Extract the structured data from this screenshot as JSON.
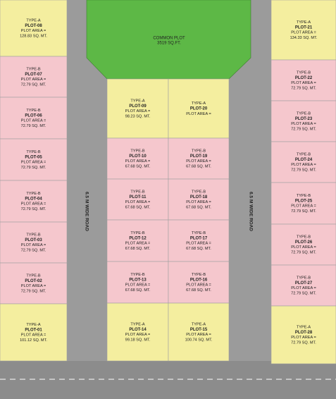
{
  "common_plot": {
    "label": "COMMON PLOT",
    "area": "3519 SQ.FT."
  },
  "road_labels": [
    "6.5 M WIDE ROAD",
    "6.5 M WIDE ROAD"
  ],
  "plots": [
    {
      "type": "TYPE-A",
      "label": "PLOT-08",
      "area_label": "PLOT AREA =",
      "area": "128.83 SQ. MT."
    },
    {
      "type": "TYPE-B",
      "label": "PLOT-07",
      "area_label": "PLOT AREA =",
      "area": "72.79 SQ. MT."
    },
    {
      "type": "TYPE-B",
      "label": "PLOT-06",
      "area_label": "PLOT AREA =",
      "area": "72.79 SQ. MT."
    },
    {
      "type": "TYPE-B",
      "label": "PLOT-05",
      "area_label": "PLOT AREA =",
      "area": "72.79 SQ. MT."
    },
    {
      "type": "TYPE-B",
      "label": "PLOT-04",
      "area_label": "PLOT AREA =",
      "area": "72.79 SQ. MT."
    },
    {
      "type": "TYPE-B",
      "label": "PLOT-03",
      "area_label": "PLOT AREA =",
      "area": "72.79 SQ. MT."
    },
    {
      "type": "TYPE-B",
      "label": "PLOT-02",
      "area_label": "PLOT AREA =",
      "area": "72.79 SQ. MT."
    },
    {
      "type": "TYPE-A",
      "label": "PLOT-01",
      "area_label": "PLOT AREA =",
      "area": "101.12 SQ. MT."
    },
    {
      "type": "TYPE-A",
      "label": "PLOT-09",
      "area_label": "PLOT AREA =",
      "area": "98.23 SQ. MT."
    },
    {
      "type": "TYPE-B",
      "label": "PLOT-10",
      "area_label": "PLOT AREA =",
      "area": "67.68 SQ. MT."
    },
    {
      "type": "TYPE-B",
      "label": "PLOT-11",
      "area_label": "PLOT AREA =",
      "area": "67.68 SQ. MT."
    },
    {
      "type": "TYPE-B",
      "label": "PLOT-12",
      "area_label": "PLOT AREA =",
      "area": "67.68 SQ. MT."
    },
    {
      "type": "TYPE-B",
      "label": "PLOT-13",
      "area_label": "PLOT AREA =",
      "area": "67.68 SQ. MT."
    },
    {
      "type": "TYPE-A",
      "label": "PLOT-14",
      "area_label": "PLOT AREA =",
      "area": "99.18 SQ. MT."
    },
    {
      "type": "TYPE-A",
      "label": "PLOT-20",
      "area_label": "PLOT AREA ="
    },
    {
      "type": "TYPE-B",
      "label": "PLOT-19",
      "area_label": "PLOT AREA =",
      "area": "67.68 SQ. MT."
    },
    {
      "type": "TYPE-B",
      "label": "PLOT-18",
      "area_label": "PLOT AREA =",
      "area": "67.68 SQ. MT."
    },
    {
      "type": "TYPE-B",
      "label": "PLOT-17",
      "area_label": "PLOT AREA =",
      "area": "67.68 SQ. MT."
    },
    {
      "type": "TYPE-B",
      "label": "PLOT-16",
      "area_label": "PLOT AREA =",
      "area": "67.68 SQ. MT."
    },
    {
      "type": "TYPE-A",
      "label": "PLOT-15",
      "area_label": "PLOT AREA =",
      "area": "100.74 SQ. MT."
    },
    {
      "type": "TYPE-A",
      "label": "PLOT-21",
      "area_label": "PLOT AREA =",
      "area": "134.33 SQ. MT."
    },
    {
      "type": "TYPE-B",
      "label": "PLOT-22",
      "area_label": "PLOT AREA =",
      "area": "72.79 SQ. MT."
    },
    {
      "type": "TYPE-B",
      "label": "PLOT-23",
      "area_label": "PLOT AREA =",
      "area": "72.79 SQ. MT."
    },
    {
      "type": "TYPE-B",
      "label": "PLOT-24",
      "area_label": "PLOT AREA =",
      "area": "72.79 SQ. MT."
    },
    {
      "type": "TYPE-B",
      "label": "PLOT-25",
      "area_label": "PLOT AREA =",
      "area": "72.79 SQ. MT."
    },
    {
      "type": "TYPE-B",
      "label": "PLOT-26",
      "area_label": "PLOT AREA =",
      "area": "72.79 SQ. MT."
    },
    {
      "type": "TYPE-B",
      "label": "PLOT-27",
      "area_label": "PLOT AREA =",
      "area": "72.79 SQ. MT."
    },
    {
      "type": "TYPE-A",
      "label": "PLOT-28",
      "area_label": "PLOT AREA =",
      "area": "72.79 SQ. MT."
    }
  ]
}
